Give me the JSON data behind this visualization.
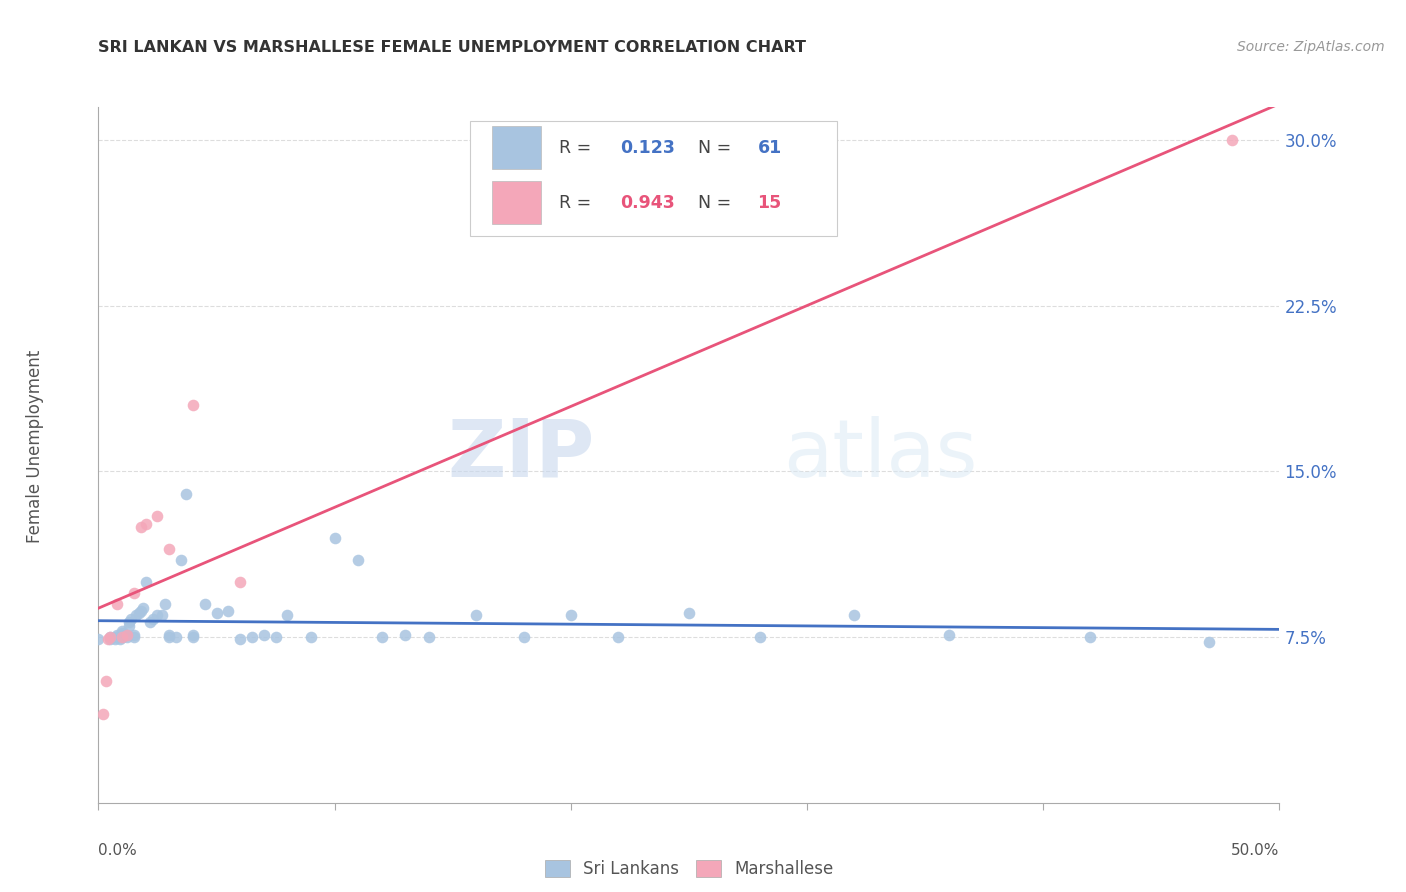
{
  "title": "SRI LANKAN VS MARSHALLESE FEMALE UNEMPLOYMENT CORRELATION CHART",
  "source": "Source: ZipAtlas.com",
  "ylabel": "Female Unemployment",
  "ytick_labels": [
    "7.5%",
    "15.0%",
    "22.5%",
    "30.0%"
  ],
  "ytick_values": [
    0.075,
    0.15,
    0.225,
    0.3
  ],
  "xlim": [
    0.0,
    0.5
  ],
  "ylim": [
    0.0,
    0.315
  ],
  "sri_lankan_color": "#a8c4e0",
  "marshallese_color": "#f4a7b9",
  "sri_lankan_line_color": "#4472c4",
  "marshallese_line_color": "#e8547a",
  "watermark_zip": "ZIP",
  "watermark_atlas": "atlas",
  "background_color": "#ffffff",
  "grid_color": "#dddddd",
  "sri_lankans_x": [
    0.0,
    0.005,
    0.005,
    0.007,
    0.007,
    0.008,
    0.008,
    0.009,
    0.009,
    0.01,
    0.01,
    0.01,
    0.01,
    0.012,
    0.012,
    0.013,
    0.013,
    0.014,
    0.015,
    0.015,
    0.016,
    0.017,
    0.018,
    0.019,
    0.02,
    0.022,
    0.023,
    0.025,
    0.027,
    0.028,
    0.03,
    0.03,
    0.033,
    0.035,
    0.037,
    0.04,
    0.04,
    0.045,
    0.05,
    0.055,
    0.06,
    0.065,
    0.07,
    0.075,
    0.08,
    0.09,
    0.1,
    0.11,
    0.12,
    0.13,
    0.14,
    0.16,
    0.18,
    0.2,
    0.22,
    0.25,
    0.28,
    0.32,
    0.36,
    0.42,
    0.47
  ],
  "sri_lankans_y": [
    0.074,
    0.074,
    0.075,
    0.074,
    0.075,
    0.075,
    0.076,
    0.074,
    0.075,
    0.075,
    0.076,
    0.077,
    0.078,
    0.075,
    0.076,
    0.08,
    0.082,
    0.083,
    0.075,
    0.076,
    0.085,
    0.086,
    0.087,
    0.088,
    0.1,
    0.082,
    0.083,
    0.085,
    0.085,
    0.09,
    0.075,
    0.076,
    0.075,
    0.11,
    0.14,
    0.075,
    0.076,
    0.09,
    0.086,
    0.087,
    0.074,
    0.075,
    0.076,
    0.075,
    0.085,
    0.075,
    0.12,
    0.11,
    0.075,
    0.076,
    0.075,
    0.085,
    0.075,
    0.085,
    0.075,
    0.086,
    0.075,
    0.085,
    0.076,
    0.075,
    0.073
  ],
  "marshallese_x": [
    0.002,
    0.003,
    0.004,
    0.005,
    0.008,
    0.01,
    0.012,
    0.015,
    0.018,
    0.02,
    0.025,
    0.03,
    0.04,
    0.06,
    0.48
  ],
  "marshallese_y": [
    0.04,
    0.055,
    0.074,
    0.075,
    0.09,
    0.075,
    0.076,
    0.095,
    0.125,
    0.126,
    0.13,
    0.115,
    0.18,
    0.1,
    0.3
  ]
}
